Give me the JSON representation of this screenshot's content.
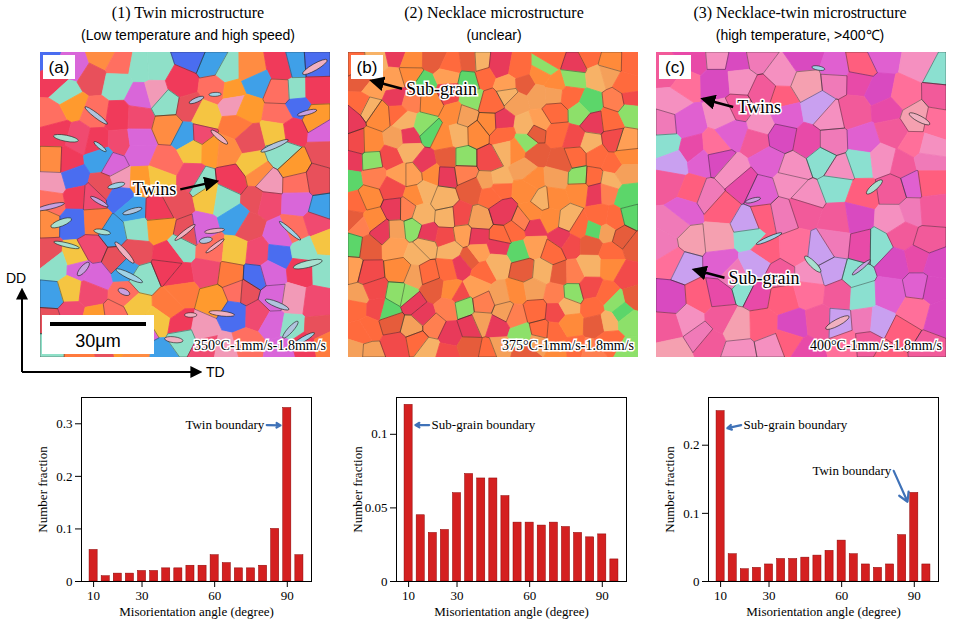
{
  "headers": [
    {
      "title": "(1) Twin microstructure",
      "subtitle": "(Low temperature and high speed)"
    },
    {
      "title": "(2) Necklace microstructure",
      "subtitle": "(unclear)"
    },
    {
      "title": "(3) Necklace-twin microstructure",
      "subtitle": "(high temperature, >400℃)"
    }
  ],
  "micrographs": [
    {
      "letter": "(a)",
      "condition": "350°C-1mm/s-1.8mm/s",
      "annotations": [
        "Twins"
      ],
      "scale_bar": "30μm"
    },
    {
      "letter": "(b)",
      "condition": "375°C-1mm/s-1.8mm/s",
      "annotations": [
        "Sub-grain"
      ]
    },
    {
      "letter": "(c)",
      "condition": "400°C-1mm/s-1.8mm/s",
      "annotations": [
        "Twins",
        "Sub-grain"
      ]
    }
  ],
  "sample_axes": {
    "vertical": "DD",
    "horizontal": "TD"
  },
  "chart_data": [
    {
      "type": "histogram",
      "x_label": "Misorientation angle (degree)",
      "y_label": "Number fraction",
      "bins": [
        7.5,
        12.5,
        17.5,
        22.5,
        27.5,
        32.5,
        37.5,
        42.5,
        47.5,
        52.5,
        57.5,
        62.5,
        67.5,
        72.5,
        77.5,
        82.5,
        87.5,
        92.5,
        97.5
      ],
      "values": [
        0.06,
        0.01,
        0.015,
        0.015,
        0.02,
        0.02,
        0.025,
        0.025,
        0.03,
        0.03,
        0.05,
        0.035,
        0.025,
        0.025,
        0.03,
        0.1,
        0.33,
        0.05
      ],
      "color": "#d42020",
      "xlim": [
        5,
        100
      ],
      "xticks": [
        10,
        30,
        60,
        90
      ],
      "ylim": [
        0,
        0.35
      ],
      "yticks": [
        0,
        0.1,
        0.2,
        0.3
      ],
      "annotations": [
        {
          "text": "Twin boundary",
          "x": 90
        }
      ]
    },
    {
      "type": "histogram",
      "x_label": "Misorientation angle (degree)",
      "y_label": "Number fraction",
      "bins": [
        7.5,
        12.5,
        17.5,
        22.5,
        27.5,
        32.5,
        37.5,
        42.5,
        47.5,
        52.5,
        57.5,
        62.5,
        67.5,
        72.5,
        77.5,
        82.5,
        87.5,
        92.5,
        97.5
      ],
      "values": [
        0.12,
        0.045,
        0.033,
        0.035,
        0.06,
        0.073,
        0.07,
        0.07,
        0.058,
        0.04,
        0.04,
        0.038,
        0.04,
        0.037,
        0.033,
        0.03,
        0.032,
        0.015
      ],
      "color": "#d42020",
      "xlim": [
        5,
        100
      ],
      "xticks": [
        10,
        30,
        60,
        90
      ],
      "ylim": [
        0,
        0.125
      ],
      "yticks": [
        0,
        0.05,
        0.1
      ],
      "annotations": [
        {
          "text": "Sub-grain boundary",
          "x": 10
        }
      ]
    },
    {
      "type": "histogram",
      "x_label": "Misorientation angle (degree)",
      "y_label": "Number fraction",
      "bins": [
        7.5,
        12.5,
        17.5,
        22.5,
        27.5,
        32.5,
        37.5,
        42.5,
        47.5,
        52.5,
        57.5,
        62.5,
        67.5,
        72.5,
        77.5,
        82.5,
        87.5,
        92.5,
        97.5
      ],
      "values": [
        0.25,
        0.04,
        0.018,
        0.02,
        0.025,
        0.033,
        0.033,
        0.035,
        0.038,
        0.045,
        0.06,
        0.04,
        0.025,
        0.02,
        0.025,
        0.068,
        0.13,
        0.025
      ],
      "color": "#d42020",
      "xlim": [
        5,
        100
      ],
      "xticks": [
        10,
        30,
        60,
        90
      ],
      "ylim": [
        0,
        0.27
      ],
      "yticks": [
        0,
        0.1,
        0.2
      ],
      "annotations": [
        {
          "text": "Sub-grain boundary",
          "x": 10
        },
        {
          "text": "Twin boundary",
          "x": 90
        }
      ]
    }
  ]
}
